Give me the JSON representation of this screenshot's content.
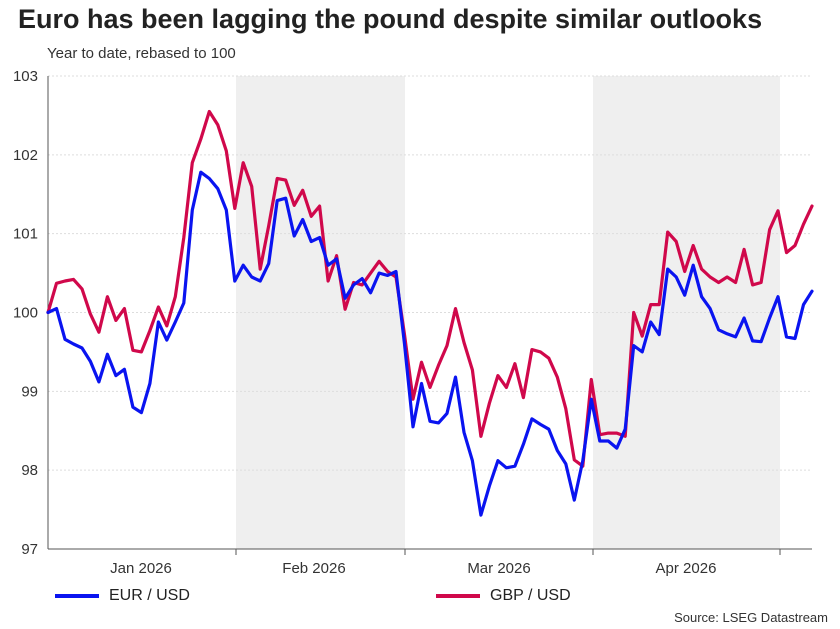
{
  "title": "Euro has been lagging the pound despite similar outlooks",
  "subtitle": "Year to date, rebased to 100",
  "source": "Source: LSEG Datastream",
  "colors": {
    "eur": "#0a14f0",
    "gbp": "#d0084b",
    "shade": "#efefef",
    "grid": "#dddddd",
    "axis": "#555555"
  },
  "chart_data": {
    "type": "line",
    "title": "Euro has been lagging the pound despite similar outlooks",
    "subtitle": "Year to date, rebased to 100",
    "xlabel": "",
    "ylabel": "",
    "ylim": [
      97,
      103
    ],
    "yticks": [
      "97",
      "98",
      "99",
      "100",
      "101",
      "102",
      "103"
    ],
    "xticks": [
      "Jan 2026",
      "Feb 2026",
      "Mar 2026",
      "Apr 2026"
    ],
    "grid": true,
    "legend": "bottom",
    "shaded_months": [
      "Feb 2026",
      "Apr 2026"
    ],
    "series": [
      {
        "name": "EUR / USD",
        "values": [
          100.0,
          100.05,
          99.66,
          99.6,
          99.55,
          99.38,
          99.12,
          99.47,
          99.2,
          99.28,
          98.8,
          98.73,
          99.1,
          99.88,
          99.65,
          99.88,
          100.12,
          101.3,
          101.78,
          101.7,
          101.57,
          101.3,
          100.4,
          100.6,
          100.45,
          100.4,
          100.62,
          101.42,
          101.45,
          100.97,
          101.18,
          100.9,
          100.95,
          100.6,
          100.68,
          100.18,
          100.35,
          100.43,
          100.25,
          100.5,
          100.47,
          100.52,
          99.6,
          98.55,
          99.1,
          98.62,
          98.6,
          98.72,
          99.18,
          98.48,
          98.12,
          97.43,
          97.8,
          98.12,
          98.03,
          98.05,
          98.33,
          98.65,
          98.58,
          98.52,
          98.25,
          98.08,
          97.62,
          98.12,
          98.9,
          98.37,
          98.37,
          98.28,
          98.52,
          99.58,
          99.5,
          99.88,
          99.72,
          100.55,
          100.45,
          100.22,
          100.6,
          100.2,
          100.05,
          99.78,
          99.73,
          99.69,
          99.93,
          99.64,
          99.63,
          99.93,
          100.2,
          99.69,
          99.67,
          100.1,
          100.27
        ]
      },
      {
        "name": "GBP / USD",
        "values": [
          100.0,
          100.37,
          100.4,
          100.42,
          100.3,
          99.98,
          99.75,
          100.2,
          99.9,
          100.05,
          99.52,
          99.5,
          99.77,
          100.07,
          99.83,
          100.2,
          100.95,
          101.9,
          102.2,
          102.55,
          102.38,
          102.05,
          101.32,
          101.9,
          101.6,
          100.55,
          101.1,
          101.7,
          101.68,
          101.36,
          101.55,
          101.22,
          101.35,
          100.4,
          100.72,
          100.04,
          100.38,
          100.35,
          100.5,
          100.65,
          100.52,
          100.45,
          99.72,
          98.9,
          99.37,
          99.05,
          99.33,
          99.58,
          100.05,
          99.62,
          99.27,
          98.43,
          98.85,
          99.2,
          99.05,
          99.35,
          98.92,
          99.53,
          99.5,
          99.42,
          99.18,
          98.78,
          98.13,
          98.05,
          99.15,
          98.45,
          98.47,
          98.47,
          98.43,
          100.0,
          99.7,
          100.1,
          100.1,
          101.02,
          100.9,
          100.52,
          100.85,
          100.55,
          100.45,
          100.38,
          100.45,
          100.38,
          100.8,
          100.35,
          100.38,
          101.05,
          101.29,
          100.76,
          100.85,
          101.12,
          101.35
        ]
      }
    ]
  }
}
